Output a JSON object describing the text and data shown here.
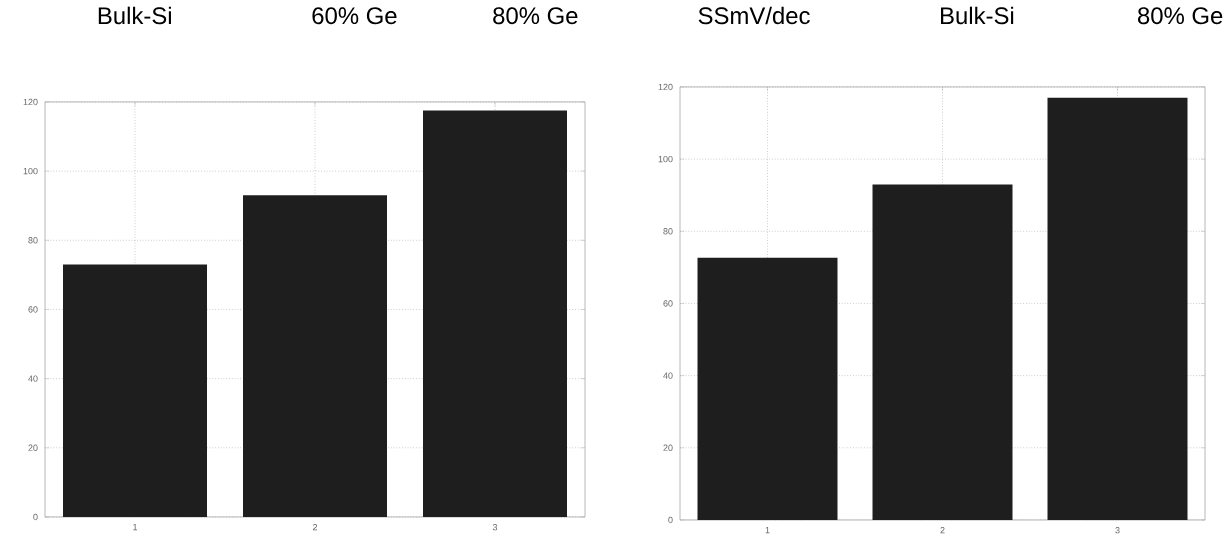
{
  "chart_data": [
    {
      "type": "bar",
      "annotations": [
        "Bulk-Si",
        "60% Ge",
        "80% Ge"
      ],
      "x": [
        1,
        2,
        3
      ],
      "values": [
        73,
        93,
        117.5
      ],
      "color": "#1e1e1e",
      "xlim": [
        0.5,
        3.5
      ],
      "xticks": [
        1,
        2,
        3
      ],
      "ylim": [
        0,
        120
      ],
      "yticks": [
        0,
        20,
        40,
        60,
        80,
        100,
        120
      ],
      "grid": true
    },
    {
      "type": "bar",
      "annotations": [
        "SSmV/dec",
        "Bulk-Si",
        "80% Ge"
      ],
      "x": [
        1,
        2,
        3
      ],
      "values": [
        72.7,
        93,
        117
      ],
      "color": "#1e1e1e",
      "xlim": [
        0.5,
        3.5
      ],
      "xticks": [
        1,
        2,
        3
      ],
      "ylim": [
        0,
        120
      ],
      "yticks": [
        0,
        20,
        40,
        60,
        80,
        100,
        120
      ],
      "grid": true
    }
  ]
}
